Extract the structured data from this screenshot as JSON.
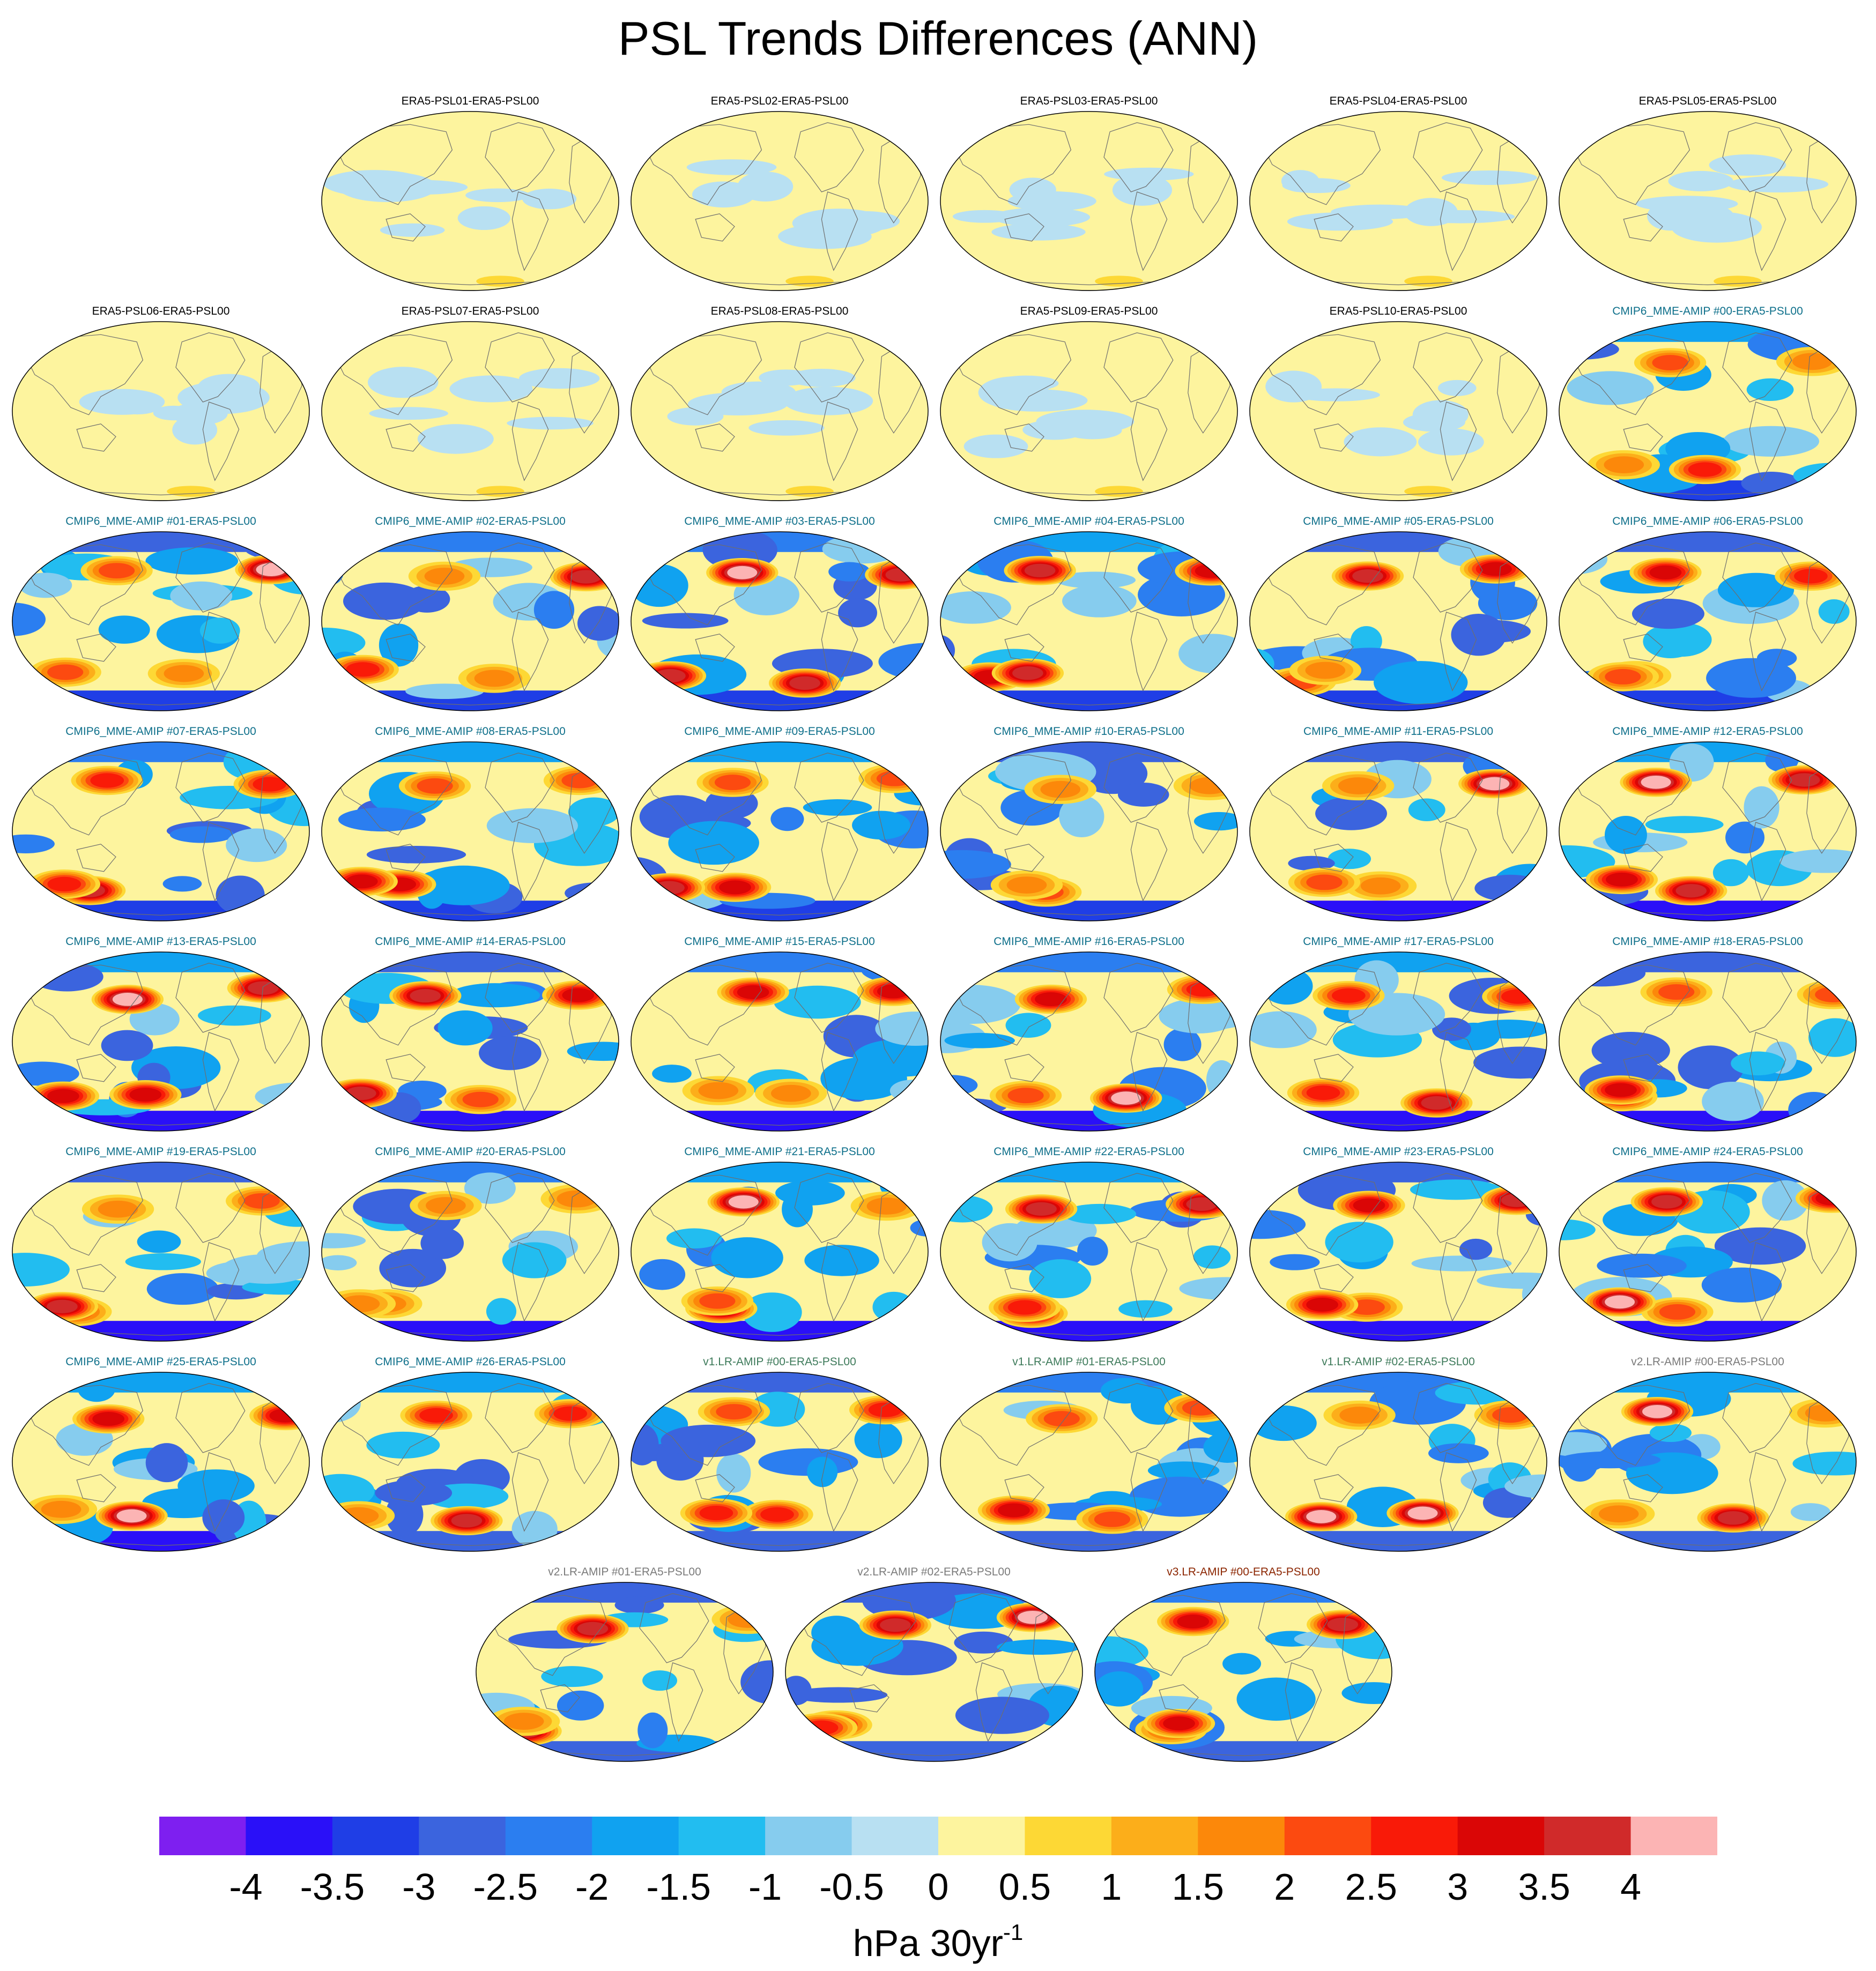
{
  "title": "PSL Trends Differences (ANN)",
  "colorbar": {
    "units_base": "hPa 30yr",
    "units_exp": "-1",
    "levels": [
      "-4",
      "-3.5",
      "-3",
      "-2.5",
      "-2",
      "-1.5",
      "-1",
      "-0.5",
      "0",
      "0.5",
      "1",
      "1.5",
      "2",
      "2.5",
      "3",
      "3.5",
      "4"
    ],
    "colors": [
      "#7e1ff0",
      "#2a10f8",
      "#1f3ee6",
      "#3b64de",
      "#2b7ef0",
      "#10a2f0",
      "#22bdf0",
      "#86ccee",
      "#b8e0f2",
      "#fdf49e",
      "#fdd835",
      "#fcae1a",
      "#fc880a",
      "#fc4a10",
      "#f91a08",
      "#da0606",
      "#d02a2a",
      "#fcb4b4"
    ]
  },
  "label_colors": {
    "era5": "#000000",
    "cmip6": "#0d6f8a",
    "v1": "#3d7a5a",
    "v2": "#7a7a7a",
    "v3": "#8b2500"
  },
  "chart_data": {
    "type": "heatmap",
    "title": "PSL Trends Differences (ANN)",
    "colorbar_levels": [
      -4,
      -3.5,
      -3,
      -2.5,
      -2,
      -1.5,
      -1,
      -0.5,
      0,
      0.5,
      1,
      1.5,
      2,
      2.5,
      3,
      3.5,
      4
    ],
    "units": "hPa 30yr-1",
    "panels": [
      {
        "label": "ERA5-PSL01-ERA5-PSL00",
        "group": "era5",
        "seed": 1
      },
      {
        "label": "ERA5-PSL02-ERA5-PSL00",
        "group": "era5",
        "seed": 2
      },
      {
        "label": "ERA5-PSL03-ERA5-PSL00",
        "group": "era5",
        "seed": 3
      },
      {
        "label": "ERA5-PSL04-ERA5-PSL00",
        "group": "era5",
        "seed": 4
      },
      {
        "label": "ERA5-PSL05-ERA5-PSL00",
        "group": "era5",
        "seed": 5
      },
      {
        "label": "ERA5-PSL06-ERA5-PSL00",
        "group": "era5",
        "seed": 6
      },
      {
        "label": "ERA5-PSL07-ERA5-PSL00",
        "group": "era5",
        "seed": 7
      },
      {
        "label": "ERA5-PSL08-ERA5-PSL00",
        "group": "era5",
        "seed": 8
      },
      {
        "label": "ERA5-PSL09-ERA5-PSL00",
        "group": "era5",
        "seed": 9
      },
      {
        "label": "ERA5-PSL10-ERA5-PSL00",
        "group": "era5",
        "seed": 10
      },
      {
        "label": "CMIP6_MME-AMIP  #00-ERA5-PSL00",
        "group": "cmip6",
        "seed": 11
      },
      {
        "label": "CMIP6_MME-AMIP  #01-ERA5-PSL00",
        "group": "cmip6",
        "seed": 12
      },
      {
        "label": "CMIP6_MME-AMIP  #02-ERA5-PSL00",
        "group": "cmip6",
        "seed": 13
      },
      {
        "label": "CMIP6_MME-AMIP  #03-ERA5-PSL00",
        "group": "cmip6",
        "seed": 14
      },
      {
        "label": "CMIP6_MME-AMIP  #04-ERA5-PSL00",
        "group": "cmip6",
        "seed": 15
      },
      {
        "label": "CMIP6_MME-AMIP  #05-ERA5-PSL00",
        "group": "cmip6",
        "seed": 16
      },
      {
        "label": "CMIP6_MME-AMIP  #06-ERA5-PSL00",
        "group": "cmip6",
        "seed": 17
      },
      {
        "label": "CMIP6_MME-AMIP  #07-ERA5-PSL00",
        "group": "cmip6",
        "seed": 18
      },
      {
        "label": "CMIP6_MME-AMIP  #08-ERA5-PSL00",
        "group": "cmip6",
        "seed": 19
      },
      {
        "label": "CMIP6_MME-AMIP  #09-ERA5-PSL00",
        "group": "cmip6",
        "seed": 20
      },
      {
        "label": "CMIP6_MME-AMIP  #10-ERA5-PSL00",
        "group": "cmip6",
        "seed": 21
      },
      {
        "label": "CMIP6_MME-AMIP  #11-ERA5-PSL00",
        "group": "cmip6",
        "seed": 22
      },
      {
        "label": "CMIP6_MME-AMIP  #12-ERA5-PSL00",
        "group": "cmip6",
        "seed": 23
      },
      {
        "label": "CMIP6_MME-AMIP  #13-ERA5-PSL00",
        "group": "cmip6",
        "seed": 24
      },
      {
        "label": "CMIP6_MME-AMIP  #14-ERA5-PSL00",
        "group": "cmip6",
        "seed": 25
      },
      {
        "label": "CMIP6_MME-AMIP  #15-ERA5-PSL00",
        "group": "cmip6",
        "seed": 26
      },
      {
        "label": "CMIP6_MME-AMIP  #16-ERA5-PSL00",
        "group": "cmip6",
        "seed": 27
      },
      {
        "label": "CMIP6_MME-AMIP  #17-ERA5-PSL00",
        "group": "cmip6",
        "seed": 28
      },
      {
        "label": "CMIP6_MME-AMIP  #18-ERA5-PSL00",
        "group": "cmip6",
        "seed": 29
      },
      {
        "label": "CMIP6_MME-AMIP  #19-ERA5-PSL00",
        "group": "cmip6",
        "seed": 30
      },
      {
        "label": "CMIP6_MME-AMIP  #20-ERA5-PSL00",
        "group": "cmip6",
        "seed": 31
      },
      {
        "label": "CMIP6_MME-AMIP  #21-ERA5-PSL00",
        "group": "cmip6",
        "seed": 32
      },
      {
        "label": "CMIP6_MME-AMIP  #22-ERA5-PSL00",
        "group": "cmip6",
        "seed": 33
      },
      {
        "label": "CMIP6_MME-AMIP  #23-ERA5-PSL00",
        "group": "cmip6",
        "seed": 34
      },
      {
        "label": "CMIP6_MME-AMIP  #24-ERA5-PSL00",
        "group": "cmip6",
        "seed": 35
      },
      {
        "label": "CMIP6_MME-AMIP  #25-ERA5-PSL00",
        "group": "cmip6",
        "seed": 36
      },
      {
        "label": "CMIP6_MME-AMIP  #26-ERA5-PSL00",
        "group": "cmip6",
        "seed": 37
      },
      {
        "label": "v1.LR-AMIP  #00-ERA5-PSL00",
        "group": "v1",
        "seed": 38
      },
      {
        "label": "v1.LR-AMIP  #01-ERA5-PSL00",
        "group": "v1",
        "seed": 39
      },
      {
        "label": "v1.LR-AMIP  #02-ERA5-PSL00",
        "group": "v1",
        "seed": 40
      },
      {
        "label": "v2.LR-AMIP  #00-ERA5-PSL00",
        "group": "v2",
        "seed": 41
      },
      {
        "label": "v2.LR-AMIP  #01-ERA5-PSL00",
        "group": "v2",
        "seed": 42
      },
      {
        "label": "v2.LR-AMIP  #02-ERA5-PSL00",
        "group": "v2",
        "seed": 43
      },
      {
        "label": "v3.LR-AMIP  #00-ERA5-PSL00",
        "group": "v3",
        "seed": 44
      }
    ]
  }
}
